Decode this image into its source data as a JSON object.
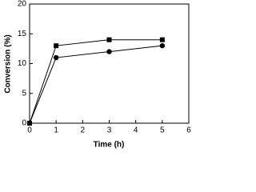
{
  "chart_data": {
    "type": "line",
    "x_label": "Time (h)",
    "y_label": "Conversion (%)",
    "x": [
      0,
      1,
      3,
      5
    ],
    "series": [
      {
        "color": "#000000",
        "marker": "square",
        "values": [
          0,
          13,
          14,
          14
        ]
      },
      {
        "color": "#000000",
        "marker": "circle",
        "values": [
          0,
          11,
          12,
          13
        ]
      }
    ],
    "xlim": [
      0,
      6
    ],
    "xticks": [
      0,
      1,
      2,
      3,
      4,
      5,
      6
    ],
    "ylim": [
      0,
      20
    ],
    "yticks": [
      0,
      5,
      10,
      15,
      20
    ],
    "grid": false
  }
}
